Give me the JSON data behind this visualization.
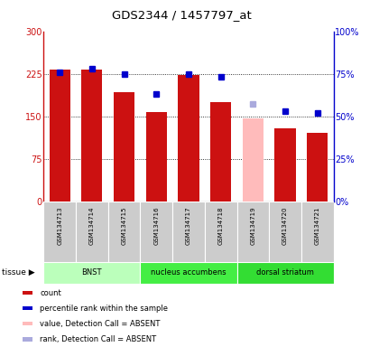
{
  "title": "GDS2344 / 1457797_at",
  "samples": [
    "GSM134713",
    "GSM134714",
    "GSM134715",
    "GSM134716",
    "GSM134717",
    "GSM134718",
    "GSM134719",
    "GSM134720",
    "GSM134721"
  ],
  "count_values": [
    232,
    233,
    193,
    157,
    222,
    175,
    null,
    128,
    120
  ],
  "absent_value": [
    null,
    null,
    null,
    null,
    null,
    null,
    147,
    null,
    null
  ],
  "rank_values": [
    76,
    78,
    75,
    63,
    75,
    73,
    null,
    53,
    52
  ],
  "absent_rank": [
    null,
    null,
    null,
    null,
    null,
    null,
    57,
    null,
    null
  ],
  "ylim_left": [
    0,
    300
  ],
  "ylim_right": [
    0,
    100
  ],
  "yticks_left": [
    0,
    75,
    150,
    225,
    300
  ],
  "yticks_right": [
    0,
    25,
    50,
    75,
    100
  ],
  "ytick_labels_left": [
    "0",
    "75",
    "150",
    "225",
    "300"
  ],
  "ytick_labels_right": [
    "0%",
    "25%",
    "50%",
    "75%",
    "100%"
  ],
  "bar_color_present": "#cc1111",
  "bar_color_absent": "#ffbbbb",
  "dot_color_present": "#0000cc",
  "dot_color_absent": "#aaaadd",
  "tissue_groups": [
    {
      "label": "BNST",
      "start": 0,
      "end": 3,
      "color": "#bbffbb"
    },
    {
      "label": "nucleus accumbens",
      "start": 3,
      "end": 6,
      "color": "#44ee44"
    },
    {
      "label": "dorsal striatum",
      "start": 6,
      "end": 9,
      "color": "#33dd33"
    }
  ],
  "legend_items": [
    {
      "color": "#cc1111",
      "label": "count"
    },
    {
      "color": "#0000cc",
      "label": "percentile rank within the sample"
    },
    {
      "color": "#ffbbbb",
      "label": "value, Detection Call = ABSENT"
    },
    {
      "color": "#aaaadd",
      "label": "rank, Detection Call = ABSENT"
    }
  ]
}
